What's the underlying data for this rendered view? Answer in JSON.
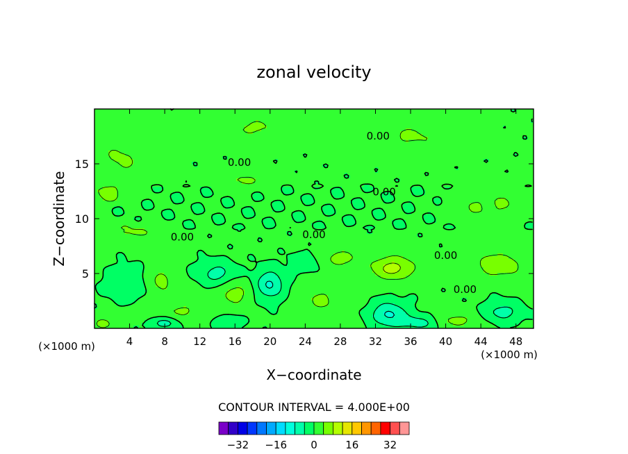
{
  "chart_data": {
    "type": "heatmap",
    "title": "zonal velocity",
    "xlabel": "X−coordinate",
    "ylabel": "Z−coordinate",
    "x_unit_label": "(×1000 m)",
    "z_unit_label": "(×1000 m)",
    "xlim": [
      0,
      50
    ],
    "ylim": [
      0,
      20
    ],
    "x_ticks": [
      4,
      8,
      12,
      16,
      20,
      24,
      28,
      32,
      36,
      40,
      44,
      48
    ],
    "y_ticks": [
      5,
      10,
      15
    ],
    "contour_interval_text": "CONTOUR INTERVAL = 4.000E+00",
    "contour_interval": 4,
    "contour_labels": [
      {
        "text": "0.00",
        "x": 16.5,
        "z": 15.2
      },
      {
        "text": "0.00",
        "x": 32.3,
        "z": 17.6
      },
      {
        "text": "0.00",
        "x": 33.0,
        "z": 12.5
      },
      {
        "text": "0.00",
        "x": 10.0,
        "z": 8.4
      },
      {
        "text": "0.00",
        "x": 25.0,
        "z": 8.6
      },
      {
        "text": "0.00",
        "x": 40.0,
        "z": 6.7
      },
      {
        "text": "0.00",
        "x": 42.2,
        "z": 3.6
      }
    ],
    "colorbar": {
      "levels": [
        -40,
        -36,
        -32,
        -28,
        -24,
        -20,
        -16,
        -12,
        -8,
        -4,
        0,
        4,
        8,
        12,
        16,
        20,
        24,
        28,
        32,
        36,
        40
      ],
      "colors": [
        "#7a00c8",
        "#3200c8",
        "#0000e6",
        "#0037ff",
        "#0078ff",
        "#00aaff",
        "#00dcff",
        "#00ffdc",
        "#00ffaa",
        "#00ff64",
        "#32ff32",
        "#78ff00",
        "#b4ff00",
        "#e6e600",
        "#ffc800",
        "#ff9600",
        "#ff6400",
        "#ff0000",
        "#ff5050",
        "#ff9696"
      ],
      "tick_labels": [
        "−32",
        "−16",
        "0",
        "16",
        "32"
      ],
      "tick_values": [
        -32,
        -16,
        0,
        16,
        32
      ]
    },
    "features": [
      {
        "x": 34,
        "z": 5.5,
        "value": 9,
        "sx": 2.5,
        "sz": 1.1
      },
      {
        "x": 46,
        "z": 5.8,
        "value": 6,
        "sx": 3.2,
        "sz": 1.3
      },
      {
        "x": 7.5,
        "z": 4.4,
        "value": 5,
        "sx": 1.6,
        "sz": 1.4
      },
      {
        "x": 28,
        "z": 6.4,
        "value": 5,
        "sx": 2.3,
        "sz": 0.9
      },
      {
        "x": 16,
        "z": 3.2,
        "value": 5,
        "sx": 1.8,
        "sz": 1.2
      },
      {
        "x": 4.5,
        "z": 8.8,
        "value": 4,
        "sx": 3.5,
        "sz": 0.8
      },
      {
        "x": 3.0,
        "z": 15.5,
        "value": 4,
        "sx": 3.0,
        "sz": 2.5
      },
      {
        "x": 18.0,
        "z": 18.3,
        "value": 4,
        "sx": 5.0,
        "sz": 1.2
      },
      {
        "x": 36.0,
        "z": 17.5,
        "value": 4,
        "sx": 5.0,
        "sz": 1.4
      },
      {
        "x": 45.0,
        "z": 11.2,
        "value": 4,
        "sx": 4.0,
        "sz": 1.4
      },
      {
        "x": 1.5,
        "z": 12.3,
        "value": 6,
        "sx": 1.3,
        "sz": 0.8
      },
      {
        "x": 17.0,
        "z": 13.5,
        "value": 4,
        "sx": 3.0,
        "sz": 0.8
      },
      {
        "x": 10.0,
        "z": 1.5,
        "value": 4,
        "sx": 4.0,
        "sz": 1.2
      },
      {
        "x": 41.0,
        "z": 0.7,
        "value": 5,
        "sx": 2.5,
        "sz": 0.8
      },
      {
        "x": 26.0,
        "z": 2.6,
        "value": 4,
        "sx": 3.0,
        "sz": 1.6
      },
      {
        "x": 1.0,
        "z": 0.4,
        "value": 5,
        "sx": 1.2,
        "sz": 0.6
      },
      {
        "x": 20.0,
        "z": 4.0,
        "value": -9,
        "sx": 1.6,
        "sz": 1.3
      },
      {
        "x": 33.5,
        "z": 1.3,
        "value": -9,
        "sx": 2.0,
        "sz": 1.1
      },
      {
        "x": 37.0,
        "z": 0.5,
        "value": -6,
        "sx": 2.5,
        "sz": 0.7
      },
      {
        "x": 8.0,
        "z": 0.5,
        "value": -7,
        "sx": 1.8,
        "sz": 0.6
      },
      {
        "x": 14.0,
        "z": 5.0,
        "value": -6,
        "sx": 2.0,
        "sz": 1.0
      },
      {
        "x": 46.5,
        "z": 1.5,
        "value": -6,
        "sx": 2.0,
        "sz": 0.9
      },
      {
        "x": 15.0,
        "z": 0.6,
        "value": -5,
        "sx": 1.5,
        "sz": 0.6
      },
      {
        "x": 24.0,
        "z": 6.0,
        "value": -4,
        "sx": 1.5,
        "sz": 0.8
      },
      {
        "x": 4.0,
        "z": 4.0,
        "value": -3,
        "sx": 2.5,
        "sz": 1.5
      }
    ]
  }
}
